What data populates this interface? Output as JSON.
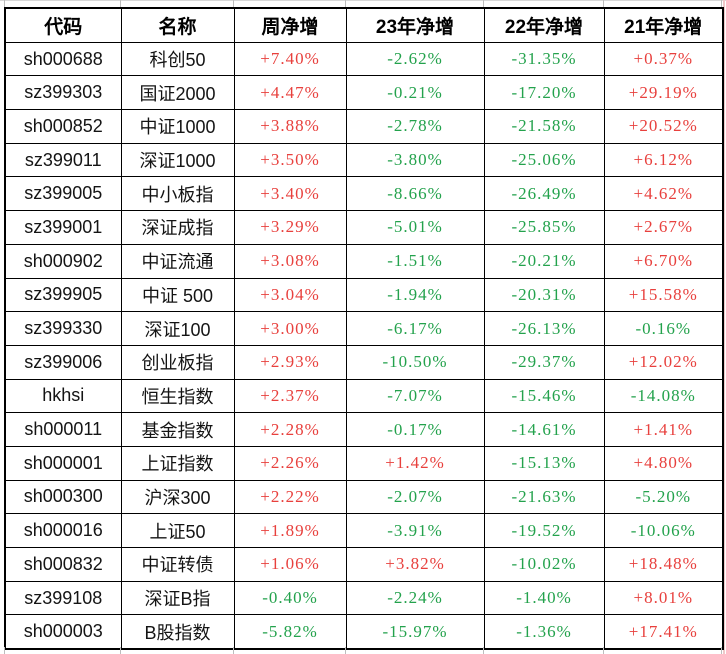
{
  "table": {
    "columns": [
      "代码",
      "名称",
      "周净增",
      "23年净增",
      "22年净增",
      "21年净增"
    ],
    "up_color": "#e8403d",
    "down_color": "#23a24c",
    "rows": [
      {
        "code": "sh000688",
        "name": "科创50",
        "values": [
          "+7.40%",
          "-2.62%",
          "-31.35%",
          "+0.37%"
        ]
      },
      {
        "code": "sz399303",
        "name": "国证2000",
        "values": [
          "+4.47%",
          "-0.21%",
          "-17.20%",
          "+29.19%"
        ]
      },
      {
        "code": "sh000852",
        "name": "中证1000",
        "values": [
          "+3.88%",
          "-2.78%",
          "-21.58%",
          "+20.52%"
        ]
      },
      {
        "code": "sz399011",
        "name": "深证1000",
        "values": [
          "+3.50%",
          "-3.80%",
          "-25.06%",
          "+6.12%"
        ]
      },
      {
        "code": "sz399005",
        "name": "中小板指",
        "values": [
          "+3.40%",
          "-8.66%",
          "-26.49%",
          "+4.62%"
        ]
      },
      {
        "code": "sz399001",
        "name": "深证成指",
        "values": [
          "+3.29%",
          "-5.01%",
          "-25.85%",
          "+2.67%"
        ]
      },
      {
        "code": "sh000902",
        "name": "中证流通",
        "values": [
          "+3.08%",
          "-1.51%",
          "-20.21%",
          "+6.70%"
        ]
      },
      {
        "code": "sz399905",
        "name": "中证 500",
        "values": [
          "+3.04%",
          "-1.94%",
          "-20.31%",
          "+15.58%"
        ]
      },
      {
        "code": "sz399330",
        "name": "深证100",
        "values": [
          "+3.00%",
          "-6.17%",
          "-26.13%",
          "-0.16%"
        ]
      },
      {
        "code": "sz399006",
        "name": "创业板指",
        "values": [
          "+2.93%",
          "-10.50%",
          "-29.37%",
          "+12.02%"
        ]
      },
      {
        "code": "hkhsi",
        "name": "恒生指数",
        "values": [
          "+2.37%",
          "-7.07%",
          "-15.46%",
          "-14.08%"
        ]
      },
      {
        "code": "sh000011",
        "name": "基金指数",
        "values": [
          "+2.28%",
          "-0.17%",
          "-14.61%",
          "+1.41%"
        ]
      },
      {
        "code": "sh000001",
        "name": "上证指数",
        "values": [
          "+2.26%",
          "+1.42%",
          "-15.13%",
          "+4.80%"
        ]
      },
      {
        "code": "sh000300",
        "name": "沪深300",
        "values": [
          "+2.22%",
          "-2.07%",
          "-21.63%",
          "-5.20%"
        ]
      },
      {
        "code": "sh000016",
        "name": "上证50",
        "values": [
          "+1.89%",
          "-3.91%",
          "-19.52%",
          "-10.06%"
        ]
      },
      {
        "code": "sh000832",
        "name": "中证转债",
        "values": [
          "+1.06%",
          "+3.82%",
          "-10.02%",
          "+18.48%"
        ]
      },
      {
        "code": "sz399108",
        "name": "深证B指",
        "values": [
          "-0.40%",
          "-2.24%",
          "-1.40%",
          "+8.01%"
        ]
      },
      {
        "code": "sh000003",
        "name": "B股指数",
        "values": [
          "-5.82%",
          "-15.97%",
          "-1.36%",
          "+17.41%"
        ]
      }
    ]
  }
}
